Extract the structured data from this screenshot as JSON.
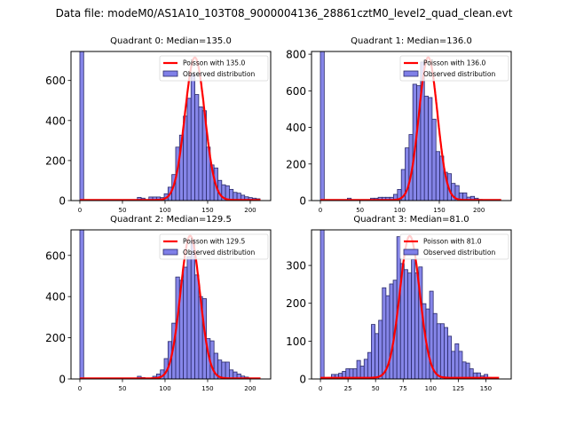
{
  "suptitle": "Data file: modeM0/AS1A10_103T08_9000004136_28861cztM0_level2_quad_clean.evt",
  "colors": {
    "hist_fill": "#7f7fe8",
    "hist_edge": "#2a2a6a",
    "poisson_line": "#ff0000"
  },
  "chart_data": [
    {
      "type": "bar",
      "title": "Quadrant 0: Median=135.0",
      "legend": [
        "Poisson with 135.0",
        "Observed distribution"
      ],
      "legend_position": "top-right",
      "xlim": [
        -10.4,
        224
      ],
      "ylim": [
        0,
        745
      ],
      "xticks": [
        0,
        50,
        100,
        150,
        200
      ],
      "yticks": [
        0,
        200,
        400,
        600
      ],
      "bin_width": 4.5,
      "bins": [
        [
          0,
          2000
        ],
        [
          67.5,
          16
        ],
        [
          72,
          12
        ],
        [
          81,
          18
        ],
        [
          85.5,
          18
        ],
        [
          90,
          18
        ],
        [
          94.5,
          15
        ],
        [
          99,
          34
        ],
        [
          103.5,
          67
        ],
        [
          108,
          130
        ],
        [
          112.5,
          267
        ],
        [
          117,
          327
        ],
        [
          121.5,
          422
        ],
        [
          126,
          511
        ],
        [
          130.5,
          634
        ],
        [
          135,
          530
        ],
        [
          139.5,
          468
        ],
        [
          144,
          449
        ],
        [
          148.5,
          267
        ],
        [
          153,
          178
        ],
        [
          157.5,
          163
        ],
        [
          162,
          101
        ],
        [
          166.5,
          79
        ],
        [
          171,
          74
        ],
        [
          175.5,
          56
        ],
        [
          180,
          41
        ],
        [
          184.5,
          37
        ],
        [
          189,
          27
        ],
        [
          193.5,
          19
        ],
        [
          198,
          15
        ],
        [
          202.5,
          12
        ],
        [
          207,
          9
        ]
      ],
      "poisson": {
        "mean": 135.0,
        "peak": 712,
        "x_range": [
          0,
          212
        ]
      }
    },
    {
      "type": "bar",
      "title": "Quadrant 1: Median=136.0",
      "legend": [
        "Poisson with 136.0",
        "Observed distribution"
      ],
      "legend_position": "top-right",
      "xlim": [
        -11.2,
        240.7
      ],
      "ylim": [
        0,
        815
      ],
      "xticks": [
        0,
        50,
        100,
        150,
        200
      ],
      "yticks": [
        0,
        200,
        400,
        600,
        800
      ],
      "bin_width": 4.86,
      "bins": [
        [
          0,
          2000
        ],
        [
          19.4,
          5
        ],
        [
          34,
          13
        ],
        [
          63.2,
          13
        ],
        [
          68,
          13
        ],
        [
          72.9,
          18
        ],
        [
          77.8,
          18
        ],
        [
          82.6,
          18
        ],
        [
          87.5,
          18
        ],
        [
          92.3,
          34
        ],
        [
          97.2,
          61
        ],
        [
          102.1,
          170
        ],
        [
          106.9,
          288
        ],
        [
          111.8,
          361
        ],
        [
          116.6,
          636
        ],
        [
          121.5,
          628
        ],
        [
          126.4,
          757
        ],
        [
          131.2,
          571
        ],
        [
          136.1,
          563
        ],
        [
          140.9,
          445
        ],
        [
          145.8,
          268
        ],
        [
          150.7,
          243
        ],
        [
          155.5,
          155
        ],
        [
          160.4,
          147
        ],
        [
          165.2,
          94
        ],
        [
          170.1,
          82
        ],
        [
          175,
          42
        ],
        [
          179.8,
          42
        ],
        [
          184.7,
          19
        ],
        [
          189.5,
          23
        ],
        [
          194.4,
          13
        ],
        [
          199.3,
          6
        ],
        [
          204.1,
          5
        ],
        [
          209,
          5
        ],
        [
          213.8,
          3
        ],
        [
          218.7,
          3
        ]
      ],
      "poisson": {
        "mean": 136.0,
        "peak": 780,
        "x_range": [
          0,
          228
        ]
      }
    },
    {
      "type": "bar",
      "title": "Quadrant 2: Median=129.5",
      "legend": [
        "Poisson with 129.5",
        "Observed distribution"
      ],
      "legend_position": "top-right",
      "xlim": [
        -10.4,
        224
      ],
      "ylim": [
        0,
        724
      ],
      "xticks": [
        0,
        50,
        100,
        150,
        200
      ],
      "yticks": [
        0,
        200,
        400,
        600
      ],
      "bin_width": 4.5,
      "bins": [
        [
          0,
          2000
        ],
        [
          4.5,
          4
        ],
        [
          67.5,
          13
        ],
        [
          72,
          7
        ],
        [
          85.5,
          13
        ],
        [
          90,
          24
        ],
        [
          94.5,
          44
        ],
        [
          99,
          99
        ],
        [
          103.5,
          182
        ],
        [
          108,
          271
        ],
        [
          112.5,
          495
        ],
        [
          117,
          479
        ],
        [
          121.5,
          543
        ],
        [
          126,
          594
        ],
        [
          130.5,
          672
        ],
        [
          135,
          505
        ],
        [
          139.5,
          400
        ],
        [
          144,
          390
        ],
        [
          148.5,
          196
        ],
        [
          153,
          185
        ],
        [
          157.5,
          125
        ],
        [
          162,
          92
        ],
        [
          166.5,
          82
        ],
        [
          171,
          82
        ],
        [
          175.5,
          44
        ],
        [
          180,
          34
        ],
        [
          184.5,
          24
        ],
        [
          189,
          14
        ],
        [
          193.5,
          9
        ],
        [
          198,
          4
        ]
      ],
      "poisson": {
        "mean": 129.5,
        "peak": 692,
        "x_range": [
          0,
          212
        ]
      }
    },
    {
      "type": "bar",
      "title": "Quadrant 3: Median=81.0",
      "legend": [
        "Poisson with 81.0",
        "Observed distribution"
      ],
      "legend_position": "top-right",
      "xlim": [
        -8.1,
        173
      ],
      "ylim": [
        0,
        394
      ],
      "xticks": [
        0,
        25,
        50,
        75,
        100,
        125,
        150
      ],
      "yticks": [
        0,
        100,
        200,
        300
      ],
      "bin_width": 3.3,
      "bins": [
        [
          0,
          2000
        ],
        [
          3.3,
          2
        ],
        [
          6.6,
          4
        ],
        [
          9.9,
          12
        ],
        [
          13.2,
          12
        ],
        [
          16.5,
          15
        ],
        [
          19.8,
          20
        ],
        [
          23.1,
          27
        ],
        [
          26.4,
          27
        ],
        [
          29.7,
          27
        ],
        [
          33,
          49
        ],
        [
          36.3,
          34
        ],
        [
          39.6,
          52
        ],
        [
          42.9,
          70
        ],
        [
          46.2,
          144
        ],
        [
          49.5,
          120
        ],
        [
          52.8,
          155
        ],
        [
          56.1,
          241
        ],
        [
          59.4,
          220
        ],
        [
          62.7,
          251
        ],
        [
          66,
          261
        ],
        [
          69.3,
          376
        ],
        [
          72.6,
          305
        ],
        [
          75.9,
          289
        ],
        [
          79.2,
          280
        ],
        [
          82.5,
          316
        ],
        [
          85.8,
          280
        ],
        [
          89.1,
          296
        ],
        [
          92.4,
          199
        ],
        [
          95.7,
          185
        ],
        [
          99,
          232
        ],
        [
          102.3,
          173
        ],
        [
          105.6,
          146
        ],
        [
          108.9,
          146
        ],
        [
          112.2,
          136
        ],
        [
          115.5,
          113
        ],
        [
          118.8,
          73
        ],
        [
          122.1,
          93
        ],
        [
          125.4,
          73
        ],
        [
          128.7,
          45
        ],
        [
          132,
          42
        ],
        [
          135.3,
          27
        ],
        [
          138.6,
          16
        ],
        [
          141.9,
          16
        ],
        [
          145.2,
          8
        ],
        [
          148.5,
          12
        ],
        [
          151.8,
          4
        ],
        [
          155.1,
          2
        ]
      ],
      "poisson": {
        "mean": 81.0,
        "peak": 375,
        "x_range": [
          0,
          162
        ]
      }
    }
  ]
}
